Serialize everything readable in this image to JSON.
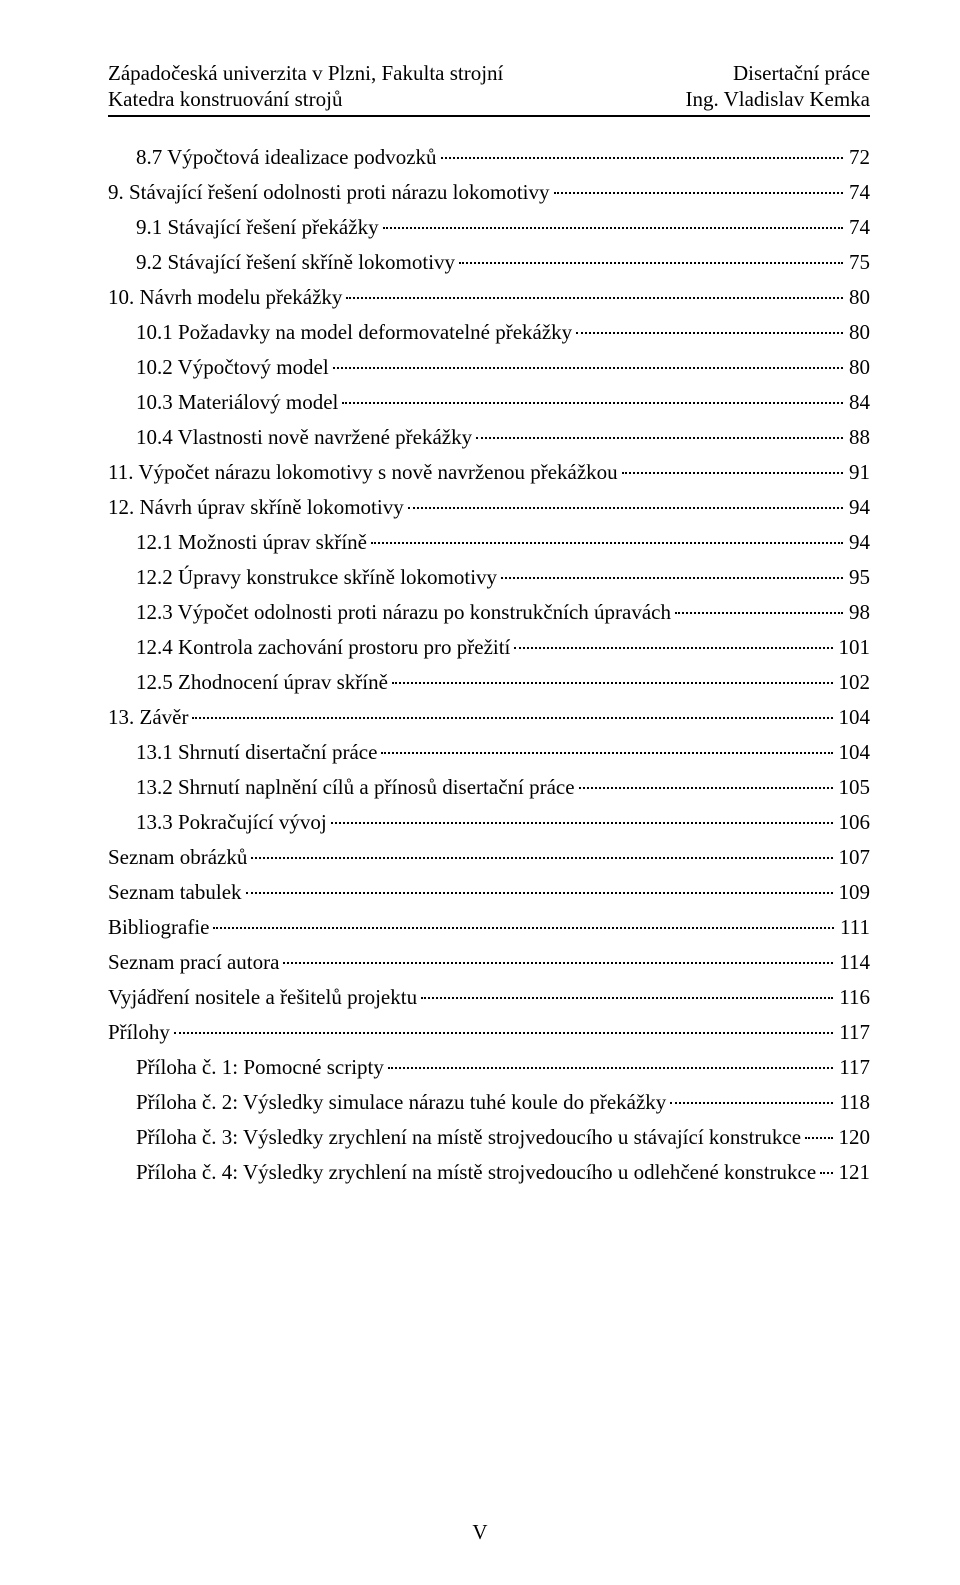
{
  "header": {
    "left_top": "Západočeská univerzita v Plzni, Fakulta strojní",
    "right_top": "Disertační práce",
    "left_bottom": "Katedra konstruování strojů",
    "right_bottom": "Ing. Vladislav Kemka"
  },
  "footer": {
    "page_number": "V"
  },
  "toc": [
    {
      "indent": 1,
      "label": "8.7 Výpočtová idealizace podvozků",
      "page": "72"
    },
    {
      "indent": 0,
      "label": "9. Stávající řešení odolnosti proti nárazu lokomotivy",
      "page": "74"
    },
    {
      "indent": 1,
      "label": "9.1 Stávající řešení překážky",
      "page": "74"
    },
    {
      "indent": 1,
      "label": "9.2 Stávající řešení skříně lokomotivy",
      "page": "75"
    },
    {
      "indent": 0,
      "label": "10. Návrh modelu překážky",
      "page": "80"
    },
    {
      "indent": 1,
      "label": "10.1 Požadavky na model deformovatelné překážky",
      "page": "80"
    },
    {
      "indent": 1,
      "label": "10.2 Výpočtový model",
      "page": "80"
    },
    {
      "indent": 1,
      "label": "10.3 Materiálový model",
      "page": "84"
    },
    {
      "indent": 1,
      "label": "10.4 Vlastnosti nově navržené překážky",
      "page": "88"
    },
    {
      "indent": 0,
      "label": "11. Výpočet nárazu lokomotivy s nově navrženou překážkou",
      "page": "91"
    },
    {
      "indent": 0,
      "label": "12. Návrh úprav skříně lokomotivy",
      "page": "94"
    },
    {
      "indent": 1,
      "label": "12.1 Možnosti úprav skříně",
      "page": "94"
    },
    {
      "indent": 1,
      "label": "12.2 Úpravy konstrukce skříně lokomotivy",
      "page": "95"
    },
    {
      "indent": 1,
      "label": "12.3 Výpočet odolnosti proti nárazu po konstrukčních úpravách",
      "page": "98"
    },
    {
      "indent": 1,
      "label": "12.4 Kontrola zachování prostoru pro přežití",
      "page": "101"
    },
    {
      "indent": 1,
      "label": "12.5 Zhodnocení úprav skříně",
      "page": "102"
    },
    {
      "indent": 0,
      "label": "13. Závěr",
      "page": "104"
    },
    {
      "indent": 1,
      "label": "13.1 Shrnutí disertační práce",
      "page": "104"
    },
    {
      "indent": 1,
      "label": "13.2 Shrnutí naplnění cílů a přínosů disertační práce",
      "page": "105"
    },
    {
      "indent": 1,
      "label": "13.3 Pokračující vývoj",
      "page": "106"
    },
    {
      "indent": 0,
      "label": "Seznam obrázků",
      "page": "107"
    },
    {
      "indent": 0,
      "label": "Seznam tabulek",
      "page": "109"
    },
    {
      "indent": 0,
      "label": "Bibliografie",
      "page": "111"
    },
    {
      "indent": 0,
      "label": "Seznam prací autora",
      "page": "114"
    },
    {
      "indent": 0,
      "label": "Vyjádření nositele a řešitelů projektu",
      "page": "116"
    },
    {
      "indent": 0,
      "label": "Přílohy",
      "page": "117"
    },
    {
      "indent": 1,
      "label": "Příloha č. 1: Pomocné scripty",
      "page": "117"
    },
    {
      "indent": 1,
      "label": "Příloha č. 2: Výsledky simulace nárazu tuhé koule do překážky",
      "page": "118"
    },
    {
      "indent": 1,
      "label": "Příloha č. 3: Výsledky zrychlení na místě strojvedoucího u stávající konstrukce",
      "page": "120"
    },
    {
      "indent": 1,
      "label": "Příloha č. 4: Výsledky zrychlení na místě strojvedoucího u odlehčené konstrukce",
      "page": "121"
    }
  ]
}
